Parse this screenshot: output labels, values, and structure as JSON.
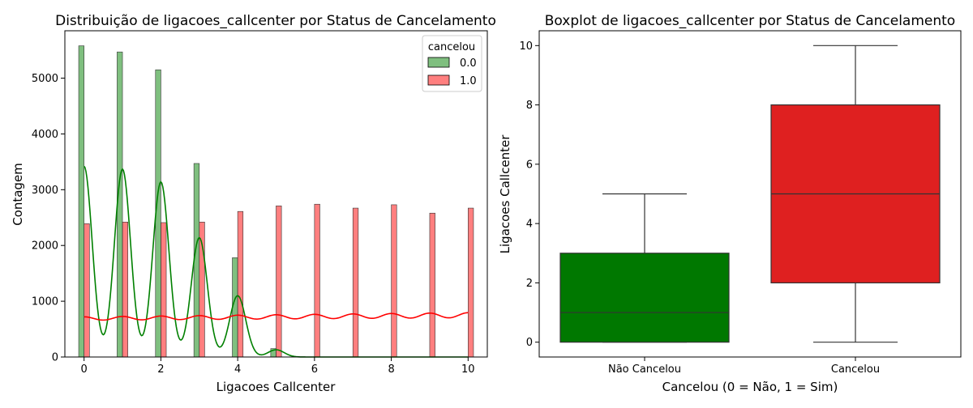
{
  "colors": {
    "no_cancel": "#008000",
    "cancel": "#ff0000",
    "box_no": "#007800",
    "box_yes": "#df2020"
  },
  "hist": {
    "title": "Distribuição de ligacoes_callcenter por Status de Cancelamento",
    "xlabel": "Ligacoes Callcenter",
    "ylabel": "Contagem",
    "xlim": [
      -0.5,
      10.5
    ],
    "ylim": [
      0,
      5850
    ],
    "xticks": [
      0,
      2,
      4,
      6,
      8,
      10
    ],
    "yticks": [
      0,
      1000,
      2000,
      3000,
      4000,
      5000
    ],
    "legend": {
      "title": "cancelou",
      "entries": [
        "0.0",
        "1.0"
      ],
      "position": "top-right"
    }
  },
  "box": {
    "title": "Boxplot de ligacoes_callcenter por Status de Cancelamento",
    "xlabel": "Cancelou (0 = Não, 1 = Sim)",
    "ylabel": "Ligacoes Callcenter",
    "ylim": [
      -0.5,
      10.5
    ],
    "yticks": [
      0,
      2,
      4,
      6,
      8,
      10
    ],
    "categories": [
      "Não Cancelou",
      "Cancelou"
    ]
  },
  "chart_data": [
    {
      "type": "bar",
      "title": "Distribuição de ligacoes_callcenter por Status de Cancelamento",
      "xlabel": "Ligacoes Callcenter",
      "ylabel": "Contagem",
      "categories": [
        0,
        1,
        2,
        3,
        4,
        5,
        6,
        7,
        8,
        9,
        10
      ],
      "series": [
        {
          "name": "0.0",
          "values": [
            5580,
            5470,
            5150,
            3470,
            1780,
            150,
            0,
            0,
            0,
            0,
            0
          ]
        },
        {
          "name": "1.0",
          "values": [
            2390,
            2420,
            2410,
            2420,
            2610,
            2710,
            2740,
            2670,
            2730,
            2580,
            2670
          ]
        }
      ],
      "kde": [
        {
          "name": "0.0",
          "peaks": [
            3420,
            3370,
            3140,
            2140,
            1100,
            130
          ]
        },
        {
          "name": "1.0",
          "level": 700
        }
      ],
      "xlim": [
        -0.5,
        10.5
      ],
      "ylim": [
        0,
        5850
      ],
      "legend": "top-right"
    },
    {
      "type": "box",
      "title": "Boxplot de ligacoes_callcenter por Status de Cancelamento",
      "xlabel": "Cancelou (0 = Não, 1 = Sim)",
      "ylabel": "Ligacoes Callcenter",
      "categories": [
        "Não Cancelou",
        "Cancelou"
      ],
      "boxes": [
        {
          "category": "Não Cancelou",
          "min": 0,
          "q1": 0,
          "median": 1,
          "q3": 3,
          "max": 5
        },
        {
          "category": "Cancelou",
          "min": 0,
          "q1": 2,
          "median": 5,
          "q3": 8,
          "max": 10
        }
      ],
      "ylim": [
        -0.5,
        10.5
      ]
    }
  ]
}
